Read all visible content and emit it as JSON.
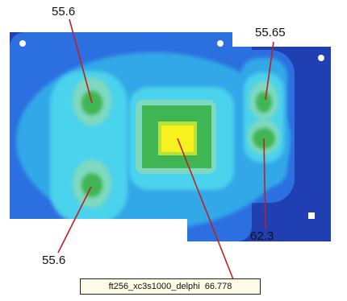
{
  "colors": {
    "deep_blue": "#1f3fb3",
    "mid_blue": "#2c6fe0",
    "light_blue": "#30a8e8",
    "cyan": "#4cd2ec",
    "teal_green": "#7fd9c0",
    "green": "#3fb553",
    "yellow_green": "#b8e23a",
    "yellow": "#f7f21f",
    "leader_line": "#c02020"
  },
  "labels": {
    "top_left": "55.6",
    "top_right": "55.65",
    "bottom_right": "62.3",
    "bottom_left": "55.6"
  },
  "tag": {
    "name": "ft256_xc3s1000_delphi",
    "value": "66.778"
  }
}
